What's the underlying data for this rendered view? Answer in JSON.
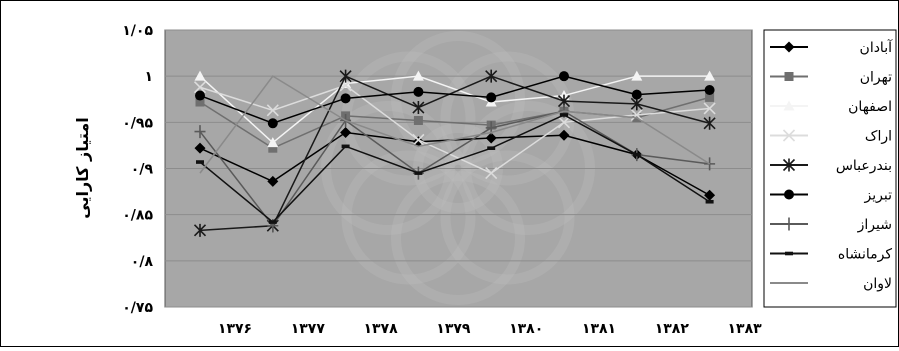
{
  "chart_data": {
    "type": "line",
    "title": "",
    "xlabel": "",
    "ylabel": "امتیاز کارایی",
    "categories": [
      "۱۳۷۶",
      "۱۳۷۷",
      "۱۳۷۸",
      "۱۳۷۹",
      "۱۳۸۰",
      "۱۳۸۱",
      "۱۳۸۲",
      "۱۳۸۳"
    ],
    "x_tick_labels": [
      "۱۳۷۶",
      "۱۳۷۷",
      "۱۳۷۸",
      "۱۳۷۹",
      "۱۳۸۰",
      "۱۳۸۱",
      "۱۳۸۲",
      "۱۳۸۳"
    ],
    "y_tick_labels": [
      "۱/۰۵",
      "۱",
      "۰/۹۵",
      "۰/۹",
      "۰/۸۵",
      "۰/۸",
      "۰/۷۵"
    ],
    "ylim": [
      0.75,
      1.05
    ],
    "grid": true,
    "legend_position": "right",
    "plot_background": "#a7a7a7",
    "series": [
      {
        "name": "آبادان",
        "marker": "diamond",
        "color": "#000000",
        "width": 1.5,
        "values": [
          0.922,
          0.886,
          0.939,
          0.929,
          0.933,
          0.936,
          0.915,
          0.871
        ]
      },
      {
        "name": "تهران",
        "marker": "square",
        "color": "#6f6f6f",
        "width": 1.5,
        "values": [
          0.972,
          0.922,
          0.957,
          0.952,
          0.947,
          0.962,
          0.955,
          0.977
        ]
      },
      {
        "name": "اصفهان",
        "marker": "triangle",
        "color": "#f4f4f4",
        "width": 1.5,
        "values": [
          1.0,
          0.928,
          0.992,
          1.0,
          0.972,
          0.979,
          1.0,
          1.0
        ]
      },
      {
        "name": "اراک",
        "marker": "x",
        "color": "#dcdcdc",
        "width": 1.5,
        "values": [
          0.988,
          0.963,
          0.99,
          0.931,
          0.895,
          0.95,
          0.958,
          0.965
        ]
      },
      {
        "name": "بندرعباس",
        "marker": "star",
        "color": "#1a1a1a",
        "width": 1.5,
        "values": [
          0.833,
          0.838,
          1.0,
          0.966,
          1.0,
          0.973,
          0.97,
          0.949
        ]
      },
      {
        "name": "تبریز",
        "marker": "circle",
        "color": "#000000",
        "width": 1.5,
        "values": [
          0.979,
          0.949,
          0.976,
          0.983,
          0.977,
          1.0,
          0.98,
          0.985
        ]
      },
      {
        "name": "شیراز",
        "marker": "plus",
        "color": "#5a5a5a",
        "width": 1.5,
        "values": [
          0.94,
          0.838,
          0.952,
          0.895,
          0.944,
          0.962,
          0.915,
          0.905
        ]
      },
      {
        "name": "کرمانشاه",
        "marker": "dash",
        "color": "#111111",
        "width": 1.5,
        "values": [
          0.907,
          0.842,
          0.924,
          0.895,
          0.922,
          0.958,
          0.915,
          0.864
        ]
      },
      {
        "name": "لاوان",
        "marker": "none",
        "color": "#8a8a8a",
        "width": 1.5,
        "values": [
          0.895,
          1.0,
          0.952,
          0.924,
          0.939,
          0.962,
          0.955,
          0.905
        ]
      }
    ]
  }
}
